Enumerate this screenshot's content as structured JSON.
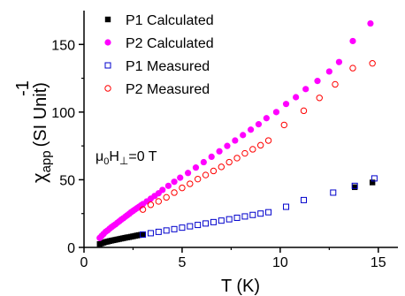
{
  "chart_data": {
    "type": "scatter",
    "xlabel": "T (K)",
    "ylabel": {
      "base": "χ",
      "subscript": "app",
      "superscript": "-1",
      "unit": "(SI Unit)"
    },
    "xlim": [
      0,
      16
    ],
    "ylim": [
      0,
      175
    ],
    "x_ticks": [
      0,
      5,
      10,
      15
    ],
    "y_ticks": [
      0,
      50,
      100,
      150
    ],
    "grid": false,
    "legend_position": "top-right",
    "annotation": {
      "mu": "μ",
      "mu_sub": "0",
      "H": "H",
      "H_sub": "⊥",
      "rest": "=0 T"
    },
    "series": [
      {
        "name": "P1 Calculated",
        "marker": "filled-square",
        "color": "#000000",
        "x": [
          0.8,
          0.9,
          1.0,
          1.1,
          1.2,
          1.3,
          1.4,
          1.5,
          1.6,
          1.7,
          1.8,
          1.9,
          2.0,
          2.1,
          2.2,
          2.3,
          2.4,
          2.5,
          2.6,
          2.7,
          2.8,
          2.9,
          3.0,
          13.8,
          14.7
        ],
        "y": [
          2.5,
          3.0,
          3.5,
          4.0,
          4.3,
          4.7,
          5.0,
          5.3,
          5.6,
          5.9,
          6.2,
          6.5,
          6.8,
          7.1,
          7.4,
          7.6,
          7.9,
          8.2,
          8.5,
          8.8,
          9.1,
          9.3,
          9.6,
          44.5,
          48.0
        ]
      },
      {
        "name": "P2 Calculated",
        "marker": "filled-circle",
        "color": "#ff00ff",
        "x": [
          0.8,
          0.9,
          1.0,
          1.1,
          1.2,
          1.3,
          1.4,
          1.5,
          1.6,
          1.7,
          1.8,
          1.9,
          2.0,
          2.1,
          2.2,
          2.3,
          2.4,
          2.5,
          2.6,
          2.7,
          2.8,
          2.9,
          3.0,
          3.2,
          3.4,
          3.6,
          3.8,
          4.0,
          4.3,
          4.6,
          4.9,
          5.3,
          5.7,
          6.1,
          6.5,
          6.9,
          7.3,
          7.7,
          8.1,
          8.5,
          8.9,
          9.3,
          9.8,
          10.3,
          10.8,
          11.3,
          11.9,
          12.5,
          13.0,
          13.7,
          14.6
        ],
        "y": [
          7.0,
          8.5,
          10.0,
          11.5,
          12.5,
          13.8,
          15.0,
          16.0,
          17.0,
          18.2,
          19.3,
          20.5,
          21.5,
          22.6,
          23.7,
          24.8,
          26.0,
          27.0,
          28.0,
          29.0,
          30.0,
          31.0,
          32.0,
          34.0,
          36.0,
          38.0,
          40.0,
          42.5,
          45.5,
          48.5,
          51.5,
          55.0,
          59.0,
          63.0,
          67.0,
          71.0,
          75.0,
          79.0,
          83.0,
          87.0,
          91.0,
          95.5,
          100.0,
          106.0,
          111.0,
          117.0,
          123.0,
          130.0,
          137.0,
          152.5,
          165.5
        ]
      },
      {
        "name": "P1 Measured",
        "marker": "open-square",
        "color": "#0000cc",
        "x": [
          3.0,
          3.4,
          3.8,
          4.2,
          4.6,
          5.0,
          5.4,
          5.8,
          6.2,
          6.6,
          7.0,
          7.4,
          7.8,
          8.2,
          8.6,
          9.0,
          9.4,
          10.3,
          11.2,
          12.7,
          13.8,
          14.8
        ],
        "y": [
          9.5,
          10.5,
          11.5,
          12.5,
          13.5,
          14.6,
          15.6,
          16.6,
          17.7,
          18.7,
          19.8,
          20.8,
          21.9,
          22.9,
          24.0,
          25.0,
          26.0,
          30.0,
          35.0,
          40.5,
          45.5,
          51.0
        ]
      },
      {
        "name": "P2 Measured",
        "marker": "open-circle",
        "color": "#ff0000",
        "x": [
          3.0,
          3.4,
          3.8,
          4.2,
          4.6,
          5.0,
          5.4,
          5.8,
          6.2,
          6.6,
          7.0,
          7.4,
          7.8,
          8.2,
          8.6,
          9.0,
          9.4,
          10.2,
          11.2,
          12.0,
          12.8,
          13.7,
          14.7
        ],
        "y": [
          28.0,
          31.5,
          34.0,
          37.0,
          40.5,
          44.0,
          47.0,
          50.5,
          53.5,
          56.5,
          59.5,
          63.0,
          66.0,
          69.5,
          72.5,
          75.5,
          79.0,
          90.5,
          101.0,
          110.5,
          120.5,
          132.5,
          136.0
        ]
      }
    ]
  }
}
